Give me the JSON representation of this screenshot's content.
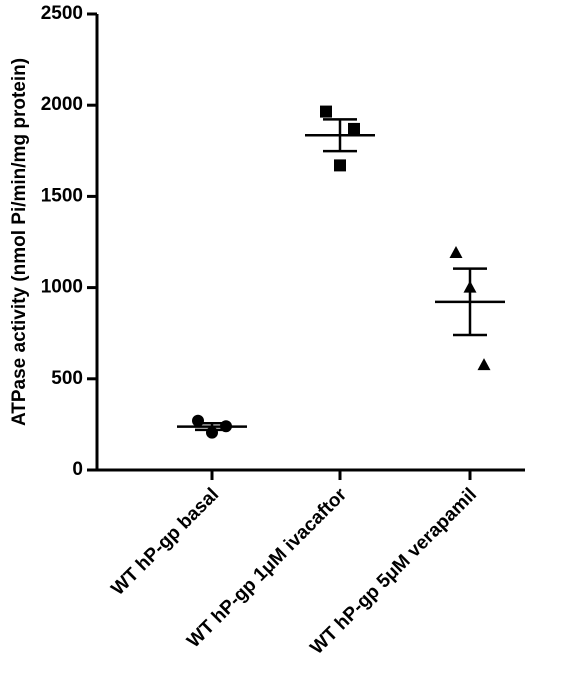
{
  "chart_data": {
    "type": "scatter",
    "title": "",
    "xlabel": "",
    "ylabel": "ATPase activity (nmol Pi/min/mg protein)",
    "ylim": [
      0,
      2500
    ],
    "yticks": [
      0,
      500,
      1000,
      1500,
      2000,
      2500
    ],
    "grid": false,
    "categories": [
      "WT hP-gp basal",
      "WT hP-gp 1μM ivacaftor",
      "WT hP-gp 5μM verapamil"
    ],
    "series": [
      {
        "marker": "circle",
        "points": [
          270,
          205,
          240
        ],
        "mean": 238,
        "sem": 18
      },
      {
        "marker": "square",
        "points": [
          1965,
          1670,
          1870
        ],
        "mean": 1835,
        "sem": 87
      },
      {
        "marker": "triangle",
        "points": [
          1190,
          1000,
          575
        ],
        "mean": 922,
        "sem": 182
      }
    ],
    "colors": {
      "axis": "#000000",
      "marker": "#000000"
    }
  }
}
